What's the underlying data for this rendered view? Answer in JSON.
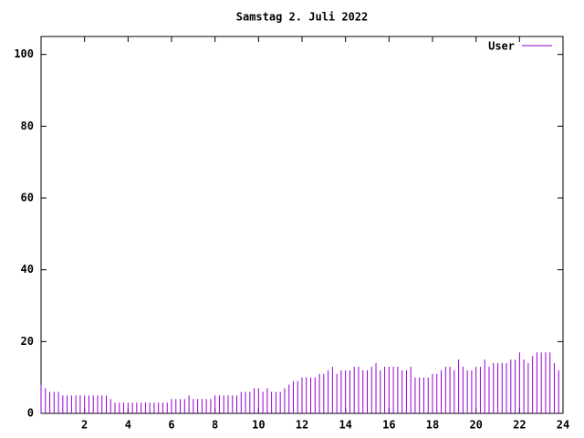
{
  "chart_data": {
    "type": "impulses",
    "title": "Samstag 2. Juli 2022",
    "x": [
      0,
      0.2,
      0.4,
      0.6,
      0.8,
      1,
      1.2,
      1.4,
      1.6,
      1.8,
      2,
      2.2,
      2.4,
      2.6,
      2.8,
      3,
      3.2,
      3.4,
      3.6,
      3.8,
      4,
      4.2,
      4.4,
      4.6,
      4.8,
      5,
      5.2,
      5.4,
      5.6,
      5.8,
      6,
      6.2,
      6.4,
      6.6,
      6.8,
      7,
      7.2,
      7.4,
      7.6,
      7.8,
      8,
      8.2,
      8.4,
      8.6,
      8.8,
      9,
      9.2,
      9.4,
      9.6,
      9.8,
      10,
      10.2,
      10.4,
      10.6,
      10.8,
      11,
      11.2,
      11.4,
      11.6,
      11.8,
      12,
      12.2,
      12.4,
      12.6,
      12.8,
      13,
      13.2,
      13.4,
      13.6,
      13.8,
      14,
      14.2,
      14.4,
      14.6,
      14.8,
      15,
      15.2,
      15.4,
      15.6,
      15.8,
      16,
      16.2,
      16.4,
      16.6,
      16.8,
      17,
      17.2,
      17.4,
      17.6,
      17.8,
      18,
      18.2,
      18.4,
      18.6,
      18.8,
      19,
      19.2,
      19.4,
      19.6,
      19.8,
      20,
      20.2,
      20.4,
      20.6,
      20.8,
      21,
      21.2,
      21.4,
      21.6,
      21.8,
      22,
      22.2,
      22.4,
      22.6,
      22.8,
      23,
      23.2,
      23.4,
      23.6,
      23.8
    ],
    "series": [
      {
        "name": "User",
        "color": "#9400d3",
        "values": [
          8,
          7,
          6,
          6,
          6,
          5,
          5,
          5,
          5,
          5,
          5,
          5,
          5,
          5,
          5,
          5,
          4,
          3,
          3,
          3,
          3,
          3,
          3,
          3,
          3,
          3,
          3,
          3,
          3,
          3,
          4,
          4,
          4,
          4,
          5,
          4,
          4,
          4,
          4,
          4,
          5,
          5,
          5,
          5,
          5,
          5,
          6,
          6,
          6,
          7,
          7,
          6,
          7,
          6,
          6,
          6,
          7,
          8,
          9,
          9,
          10,
          10,
          10,
          10,
          11,
          11,
          12,
          13,
          11,
          12,
          12,
          12,
          13,
          13,
          12,
          12,
          13,
          14,
          12,
          13,
          13,
          13,
          13,
          12,
          12,
          13,
          10,
          10,
          10,
          10,
          11,
          11,
          12,
          13,
          13,
          12,
          15,
          13,
          12,
          12,
          13,
          13,
          15,
          13,
          14,
          14,
          14,
          14,
          15,
          15,
          17,
          15,
          14,
          16,
          17,
          17,
          17,
          17,
          14,
          12
        ]
      }
    ],
    "xlim": [
      0,
      24
    ],
    "xticks": [
      2,
      4,
      6,
      8,
      10,
      12,
      14,
      16,
      18,
      20,
      22,
      24
    ],
    "ylim": [
      0,
      105
    ],
    "yticks": [
      0,
      20,
      40,
      60,
      80,
      100
    ],
    "legend": "top-right"
  }
}
